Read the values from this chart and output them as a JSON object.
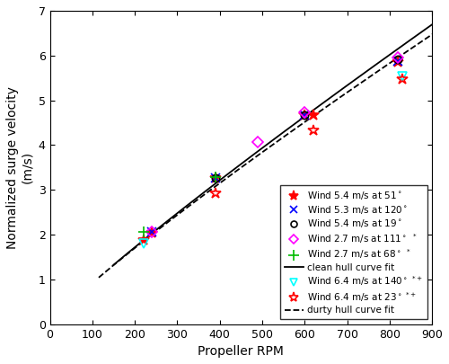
{
  "xlabel": "Propeller RPM",
  "ylabel": "Normalized surge velocity (m/s)",
  "xlim": [
    0,
    900
  ],
  "ylim": [
    0,
    7
  ],
  "xticks": [
    0,
    100,
    200,
    300,
    400,
    500,
    600,
    700,
    800,
    900
  ],
  "yticks": [
    0,
    1,
    2,
    3,
    4,
    5,
    6,
    7
  ],
  "series": [
    {
      "label": "Wind 5.4 m/s at 51$^\\circ$",
      "marker": "*",
      "color": "red",
      "markersize": 9,
      "mfc": "red",
      "x": [
        220,
        240,
        390,
        600,
        620,
        820
      ],
      "y": [
        1.88,
        2.05,
        3.27,
        4.67,
        4.67,
        5.85
      ]
    },
    {
      "label": "Wind 5.3 m/s at 120$^\\circ$",
      "marker": "x",
      "color": "blue",
      "markersize": 7,
      "mfc": "blue",
      "x": [
        240,
        390,
        600,
        820
      ],
      "y": [
        2.07,
        3.27,
        4.67,
        5.87
      ]
    },
    {
      "label": "Wind 5.4 m/s at 19$^\\circ$",
      "marker": "o",
      "color": "black",
      "markersize": 6,
      "mfc": "none",
      "x": [
        390,
        600,
        820
      ],
      "y": [
        3.27,
        4.68,
        5.92
      ]
    },
    {
      "label": "Wind 2.7 m/s at 111$^\\circ$ $^*$",
      "marker": "D",
      "color": "magenta",
      "markersize": 6,
      "mfc": "none",
      "x": [
        240,
        490,
        600,
        820
      ],
      "y": [
        2.07,
        4.07,
        4.73,
        5.95
      ]
    },
    {
      "label": "Wind 2.7 m/s at 68$^\\circ$ $^*$",
      "marker": "+",
      "color": "#00bb00",
      "markersize": 9,
      "mfc": "#00bb00",
      "x": [
        220,
        390
      ],
      "y": [
        2.07,
        3.29
      ]
    },
    {
      "label": "Wind 6.4 m/s at 140$^\\circ$ $^{*+}$",
      "marker": "v",
      "color": "cyan",
      "markersize": 7,
      "mfc": "none",
      "x": [
        220,
        830
      ],
      "y": [
        1.8,
        5.53
      ]
    },
    {
      "label": "Wind 6.4 m/s at 23$^\\circ$ $^{*+}$",
      "marker": "*",
      "color": "red",
      "markersize": 9,
      "mfc": "none",
      "x": [
        390,
        620,
        830
      ],
      "y": [
        2.93,
        4.32,
        5.48
      ]
    }
  ],
  "clean_x": [
    150,
    200,
    250,
    300,
    400,
    500,
    600,
    700,
    800,
    900
  ],
  "clean_y": [
    1.3,
    1.7,
    2.1,
    2.5,
    3.28,
    4.05,
    4.72,
    5.35,
    5.92,
    6.47
  ],
  "dirty_x": [
    120,
    170,
    220,
    280,
    380,
    480,
    580,
    680,
    780,
    880
  ],
  "dirty_y": [
    1.1,
    1.45,
    1.82,
    2.25,
    3.05,
    3.78,
    4.48,
    5.1,
    5.65,
    6.18
  ],
  "legend_loc": "lower right",
  "legend_fontsize": 7.5,
  "tick_fontsize": 9,
  "label_fontsize": 10,
  "figsize": [
    5.0,
    4.05
  ],
  "dpi": 100
}
